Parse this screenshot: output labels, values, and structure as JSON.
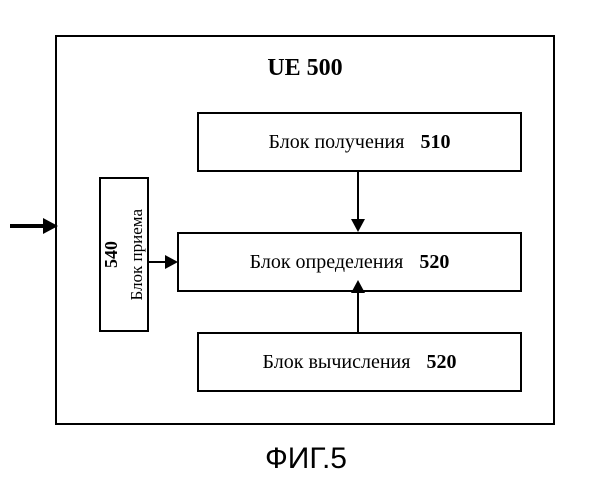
{
  "diagram": {
    "type": "flowchart",
    "container_title": "UE 500",
    "caption": "ФИГ.5",
    "border_color": "#000000",
    "background": "#ffffff",
    "title_fontsize": 24,
    "block_fontsize": 20,
    "caption_fontsize": 30,
    "blocks": {
      "acquire": {
        "label": "Блок получения",
        "number": "510"
      },
      "determine": {
        "label": "Блок определения",
        "number": "520"
      },
      "compute": {
        "label": "Блок вычисления",
        "number": "520"
      },
      "receive": {
        "label": "Блок приема",
        "number": "540"
      }
    },
    "arrows": [
      {
        "from": "acquire",
        "to": "determine",
        "direction": "down"
      },
      {
        "from": "compute",
        "to": "determine",
        "direction": "up"
      },
      {
        "from": "receive",
        "to": "determine",
        "direction": "right"
      },
      {
        "from": "external",
        "to": "receive",
        "direction": "right"
      }
    ]
  }
}
